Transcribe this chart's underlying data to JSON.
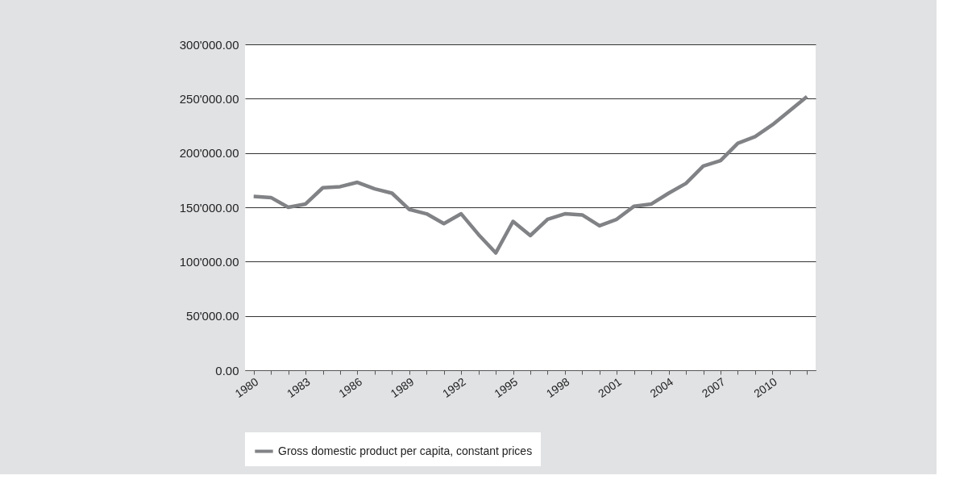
{
  "chart_data": {
    "type": "line",
    "categories": [
      "1980",
      null,
      null,
      "1983",
      null,
      null,
      "1986",
      null,
      null,
      "1989",
      null,
      null,
      "1992",
      null,
      null,
      "1995",
      null,
      null,
      "1998",
      null,
      null,
      "2001",
      null,
      null,
      "2004",
      null,
      null,
      "2007",
      null,
      null,
      "2010",
      null,
      null
    ],
    "series": [
      {
        "name": "Gross domestic product per capita, constant prices",
        "color": "#808285",
        "values": [
          160000,
          159000,
          150000,
          153000,
          168000,
          169000,
          173000,
          167000,
          163000,
          148000,
          144000,
          135000,
          144000,
          125000,
          108000,
          137000,
          124000,
          139000,
          144000,
          143000,
          133000,
          139000,
          151000,
          153000,
          163000,
          172000,
          188000,
          193000,
          209000,
          215000,
          226000,
          239000,
          252000
        ]
      }
    ],
    "ylim": [
      0,
      300000
    ],
    "yticks": [
      {
        "value": 0,
        "label": "0.00"
      },
      {
        "value": 50000,
        "label": "50'000.00"
      },
      {
        "value": 100000,
        "label": "100'000.00"
      },
      {
        "value": 150000,
        "label": "150'000.00"
      },
      {
        "value": 200000,
        "label": "200'000.00"
      },
      {
        "value": 250000,
        "label": "250'000.00"
      },
      {
        "value": 300000,
        "label": "300'000.00"
      }
    ],
    "grid": "y",
    "legend": "bottom",
    "marker": "none",
    "line_style": "solid"
  }
}
